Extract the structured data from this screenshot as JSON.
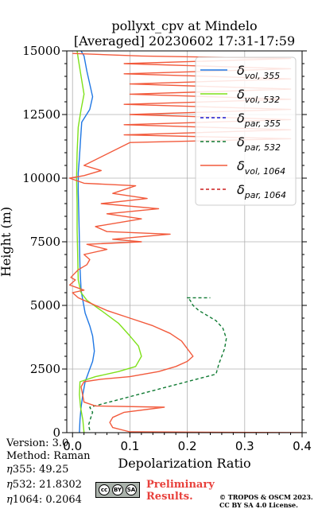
{
  "title_line1": "pollyxt_cpv at Mindelo",
  "title_line2": "[Averaged] 20230602 17:31-17:59",
  "chart_data": {
    "type": "line",
    "xlabel": "Depolarization Ratio",
    "ylabel": "Height (m)",
    "xlim": [
      -0.01,
      0.4
    ],
    "ylim": [
      0,
      15000
    ],
    "xticks": [
      "0.0",
      "0.1",
      "0.2",
      "0.3",
      "0.4"
    ],
    "yticks": [
      "0",
      "2500",
      "5000",
      "7500",
      "10000",
      "12500",
      "15000"
    ],
    "grid": true,
    "legend_position": "top-right",
    "series": [
      {
        "key": "vol355",
        "name_base": "δ",
        "name_sub": "vol, 355",
        "color": "#1f77e4",
        "dash": "solid",
        "points": [
          [
            0.012,
            0
          ],
          [
            0.013,
            500
          ],
          [
            0.015,
            1000
          ],
          [
            0.018,
            1500
          ],
          [
            0.022,
            2000
          ],
          [
            0.03,
            2500
          ],
          [
            0.035,
            2800
          ],
          [
            0.038,
            3200
          ],
          [
            0.035,
            3800
          ],
          [
            0.03,
            4200
          ],
          [
            0.022,
            4700
          ],
          [
            0.018,
            5200
          ],
          [
            0.015,
            5600
          ],
          [
            0.013,
            6500
          ],
          [
            0.012,
            7500
          ],
          [
            0.011,
            8500
          ],
          [
            0.01,
            9500
          ],
          [
            0.01,
            10200
          ],
          [
            0.012,
            10800
          ],
          [
            0.014,
            11500
          ],
          [
            0.016,
            12200
          ],
          [
            0.03,
            12700
          ],
          [
            0.035,
            13200
          ],
          [
            0.03,
            13700
          ],
          [
            0.025,
            14200
          ],
          [
            0.02,
            14800
          ],
          [
            0.015,
            15000
          ]
        ]
      },
      {
        "key": "vol532",
        "name_base": "δ",
        "name_sub": "vol, 532",
        "color": "#7ee11a",
        "dash": "solid",
        "points": [
          [
            0.02,
            0
          ],
          [
            0.018,
            500
          ],
          [
            0.014,
            1000
          ],
          [
            0.012,
            1500
          ],
          [
            0.013,
            2000
          ],
          [
            0.04,
            2200
          ],
          [
            0.08,
            2400
          ],
          [
            0.11,
            2600
          ],
          [
            0.12,
            3000
          ],
          [
            0.115,
            3400
          ],
          [
            0.1,
            3800
          ],
          [
            0.08,
            4300
          ],
          [
            0.05,
            4800
          ],
          [
            0.025,
            5200
          ],
          [
            0.015,
            5500
          ],
          [
            0.01,
            6000
          ],
          [
            0.009,
            7000
          ],
          [
            0.008,
            8000
          ],
          [
            0.008,
            9000
          ],
          [
            0.007,
            10000
          ],
          [
            0.008,
            11000
          ],
          [
            0.01,
            12000
          ],
          [
            0.015,
            12700
          ],
          [
            0.02,
            13300
          ],
          [
            0.015,
            14000
          ],
          [
            0.01,
            14700
          ],
          [
            0.008,
            15000
          ]
        ]
      },
      {
        "key": "par355",
        "name_base": "δ",
        "name_sub": "par, 355",
        "color": "#1a1ad0",
        "dash": "4,3",
        "points": []
      },
      {
        "key": "par532",
        "name_base": "δ",
        "name_sub": "par, 532",
        "color": "#0f7a32",
        "dash": "4,3",
        "points": [
          [
            0.03,
            100
          ],
          [
            0.028,
            300
          ],
          [
            0.032,
            600
          ],
          [
            0.035,
            800
          ],
          [
            0.03,
            1000
          ],
          [
            0.25,
            2300
          ],
          [
            0.255,
            2700
          ],
          [
            0.26,
            3000
          ],
          [
            0.265,
            3300
          ],
          [
            0.268,
            3700
          ],
          [
            0.262,
            4100
          ],
          [
            0.25,
            4400
          ],
          [
            0.235,
            4600
          ],
          [
            0.22,
            4800
          ],
          [
            0.21,
            5000
          ],
          [
            0.205,
            5200
          ],
          [
            0.2,
            5300
          ],
          [
            0.24,
            5300
          ]
        ]
      },
      {
        "key": "vol1064",
        "name_base": "δ",
        "name_sub": "vol, 1064",
        "color": "#f25a3c",
        "dash": "solid",
        "points": [
          [
            0.4,
            0
          ],
          [
            0.1,
            30
          ],
          [
            0.07,
            200
          ],
          [
            0.065,
            400
          ],
          [
            0.07,
            600
          ],
          [
            0.09,
            800
          ],
          [
            0.16,
            1000
          ],
          [
            0.04,
            1050
          ],
          [
            0.02,
            1200
          ],
          [
            0.015,
            1800
          ],
          [
            0.02,
            2000
          ],
          [
            0.05,
            2100
          ],
          [
            0.1,
            2200
          ],
          [
            0.15,
            2400
          ],
          [
            0.18,
            2600
          ],
          [
            0.2,
            2800
          ],
          [
            0.21,
            3000
          ],
          [
            0.2,
            3300
          ],
          [
            0.19,
            3600
          ],
          [
            0.17,
            3900
          ],
          [
            0.14,
            4200
          ],
          [
            0.1,
            4500
          ],
          [
            0.06,
            4800
          ],
          [
            0.03,
            5100
          ],
          [
            0.01,
            5300
          ],
          [
            0.0,
            5500
          ],
          [
            0.02,
            5600
          ],
          [
            -0.005,
            5800
          ],
          [
            0.005,
            6000
          ],
          [
            -0.003,
            6100
          ],
          [
            0.01,
            6400
          ],
          [
            0.025,
            6600
          ],
          [
            0.03,
            6800
          ],
          [
            0.02,
            7000
          ],
          [
            0.06,
            7200
          ],
          [
            0.025,
            7400
          ],
          [
            0.12,
            7500
          ],
          [
            0.07,
            7600
          ],
          [
            0.17,
            7800
          ],
          [
            0.06,
            7900
          ],
          [
            0.04,
            8100
          ],
          [
            0.12,
            8400
          ],
          [
            0.06,
            8600
          ],
          [
            0.15,
            8800
          ],
          [
            0.05,
            9000
          ],
          [
            0.13,
            9200
          ],
          [
            0.07,
            9400
          ],
          [
            0.11,
            9700
          ],
          [
            0.02,
            9800
          ],
          [
            -0.005,
            10000
          ],
          [
            0.02,
            10100
          ],
          [
            0.05,
            10300
          ],
          [
            0.02,
            10500
          ],
          [
            0.1,
            11400
          ],
          [
            0.38,
            11550
          ],
          [
            0.09,
            11700
          ],
          [
            0.38,
            11900
          ],
          [
            0.09,
            12100
          ],
          [
            0.38,
            12300
          ],
          [
            0.1,
            12500
          ],
          [
            0.38,
            12700
          ],
          [
            0.09,
            12900
          ],
          [
            0.38,
            13100
          ],
          [
            0.1,
            13300
          ],
          [
            0.38,
            13500
          ],
          [
            0.1,
            13700
          ],
          [
            0.38,
            13900
          ],
          [
            0.09,
            14100
          ],
          [
            0.38,
            14300
          ],
          [
            0.09,
            14500
          ],
          [
            0.38,
            14700
          ],
          [
            0.12,
            14800
          ],
          [
            0.0,
            14900
          ]
        ]
      },
      {
        "key": "par1064",
        "name_base": "δ",
        "name_sub": "par, 1064",
        "color": "#cc1f1f",
        "dash": "4,3",
        "points": []
      }
    ]
  },
  "info": {
    "version": "Version: 3.0",
    "method": "Method: Raman",
    "eta355": "355:  49.25",
    "eta532": "532: 21.8302",
    "eta1064": "1064: 0.2064",
    "eta_symbol": "η"
  },
  "license": {
    "preliminary_line1": "Preliminary",
    "preliminary_line2": "Results.",
    "copyright_line1": "© TROPOS & OSCM 2023.",
    "copyright_line2": "CC BY SA 4.0 License.",
    "badge_cc": "cc",
    "badge_by": "BY",
    "badge_sa": "SA"
  }
}
